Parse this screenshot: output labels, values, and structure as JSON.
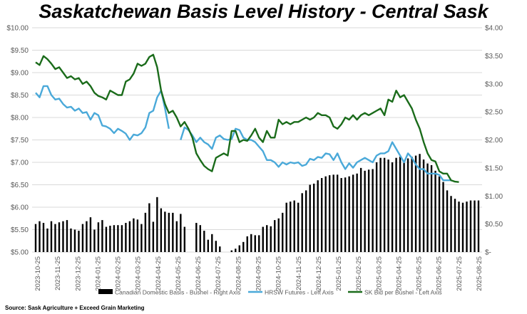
{
  "chart_data": {
    "type": "bar+line",
    "title": "Saskatchewan Basis Level History - Central Sask",
    "left_axis": {
      "min": 5.0,
      "max": 10.0,
      "ticks": [
        "$5.00",
        "$5.50",
        "$6.00",
        "$6.50",
        "$7.00",
        "$7.50",
        "$8.00",
        "$8.50",
        "$9.00",
        "$9.50",
        "$10.00"
      ]
    },
    "right_axis": {
      "min": 0.0,
      "max": 4.0,
      "ticks": [
        "$-",
        "$0.50",
        "$1.00",
        "$1.50",
        "$2.00",
        "$2.50",
        "$3.00",
        "$3.50",
        "$4.00"
      ]
    },
    "x_tick_labels": [
      "2023-10-25",
      "2023-11-25",
      "2023-12-25",
      "2024-01-25",
      "2024-02-25",
      "2024-03-25",
      "2024-04-25",
      "2024-05-25",
      "2024-06-25",
      "2024-07-25",
      "2024-08-25",
      "2024-09-25",
      "2024-10-25",
      "2024-11-25",
      "2024-12-25",
      "2025-01-25",
      "2025-02-25",
      "2025-03-25",
      "2025-04-25",
      "2025-05-25",
      "2025-06-25",
      "2025-07-25",
      "2025-08-25"
    ],
    "grid": true,
    "legend_position": "bottom",
    "series": [
      {
        "name": "Canadian Domestic Basis - Bushel - Right Axis",
        "type": "bar",
        "axis": "right",
        "color": "#000000",
        "values": [
          0.5,
          0.55,
          0.52,
          0.42,
          0.55,
          0.5,
          0.53,
          0.55,
          0.57,
          0.42,
          0.4,
          0.38,
          0.5,
          0.55,
          0.62,
          0.4,
          0.53,
          0.57,
          0.45,
          0.47,
          0.48,
          0.48,
          0.48,
          0.52,
          0.55,
          0.6,
          0.58,
          0.5,
          0.7,
          0.87,
          0.54,
          0.98,
          0.78,
          0.72,
          0.7,
          0.7,
          0.55,
          0.68,
          0.45,
          null,
          null,
          0.52,
          0.48,
          0.38,
          0.22,
          0.32,
          0.2,
          0.1,
          null,
          null,
          0.03,
          0.06,
          0.12,
          0.18,
          0.28,
          0.32,
          0.3,
          0.3,
          0.45,
          0.48,
          0.46,
          0.57,
          0.6,
          0.7,
          0.88,
          0.9,
          0.92,
          0.88,
          1.05,
          1.1,
          1.2,
          1.22,
          1.28,
          1.32,
          1.35,
          1.37,
          1.38,
          1.38,
          1.32,
          1.33,
          1.35,
          1.38,
          1.4,
          1.5,
          1.45,
          1.47,
          1.48,
          1.6,
          1.68,
          1.68,
          1.65,
          1.6,
          1.68,
          1.7,
          1.6,
          1.67,
          1.7,
          1.72,
          1.75,
          1.65,
          1.58,
          1.55,
          1.45,
          1.35,
          1.25,
          1.1,
          1.0,
          0.95,
          0.9,
          0.88,
          0.9,
          0.92,
          0.92,
          0.92
        ]
      },
      {
        "name": "HRSW Futures - Left Axis",
        "type": "line",
        "axis": "left",
        "color": "#4aa9d9",
        "values": [
          8.55,
          8.45,
          8.7,
          8.7,
          8.5,
          8.4,
          8.42,
          8.3,
          8.22,
          8.24,
          8.15,
          8.2,
          8.1,
          8.12,
          7.95,
          8.1,
          8.05,
          7.82,
          7.8,
          7.75,
          7.65,
          7.75,
          7.7,
          7.64,
          7.5,
          7.62,
          7.6,
          7.65,
          7.78,
          8.1,
          8.15,
          8.45,
          8.6,
          8.2,
          7.75,
          null,
          null,
          7.5,
          7.78,
          7.72,
          7.6,
          7.45,
          7.55,
          7.45,
          7.4,
          7.3,
          7.55,
          7.6,
          7.52,
          7.5,
          7.52,
          7.75,
          7.72,
          7.55,
          7.5,
          7.5,
          7.45,
          7.35,
          7.25,
          7.05,
          7.05,
          7.0,
          6.9,
          7.0,
          6.95,
          7.0,
          6.98,
          7.0,
          6.92,
          6.95,
          7.08,
          7.05,
          7.12,
          7.1,
          7.2,
          7.18,
          7.05,
          7.2,
          7.0,
          6.85,
          6.98,
          6.88,
          7.0,
          7.05,
          7.1,
          7.05,
          7.0,
          7.15,
          7.2,
          7.2,
          7.25,
          7.45,
          7.3,
          7.15,
          7.0,
          7.2,
          7.1,
          6.95,
          6.85,
          6.85,
          6.75,
          6.75,
          6.75,
          6.72,
          6.6,
          6.6,
          6.6
        ]
      },
      {
        "name": "SK Bid per Bushel - Left Axis",
        "type": "line",
        "axis": "left",
        "color": "#1a6b1a",
        "values": [
          9.23,
          9.17,
          9.37,
          9.3,
          9.2,
          9.08,
          9.12,
          9.0,
          8.88,
          8.92,
          8.85,
          8.88,
          8.75,
          8.8,
          8.7,
          8.55,
          8.48,
          8.45,
          8.4,
          8.6,
          8.55,
          8.5,
          8.5,
          8.8,
          8.85,
          8.98,
          9.2,
          9.15,
          9.2,
          9.35,
          9.4,
          9.12,
          8.6,
          8.3,
          8.1,
          8.15,
          8.0,
          7.8,
          7.9,
          7.75,
          7.55,
          7.2,
          7.05,
          6.92,
          6.85,
          6.8,
          7.1,
          7.15,
          7.2,
          7.15,
          7.7,
          7.7,
          7.45,
          7.5,
          7.48,
          7.6,
          7.75,
          7.55,
          7.45,
          7.7,
          7.55,
          7.55,
          7.95,
          7.85,
          7.9,
          7.85,
          7.9,
          7.9,
          7.95,
          8.0,
          7.95,
          8.0,
          8.1,
          8.05,
          8.05,
          8.0,
          7.8,
          7.75,
          7.85,
          8.0,
          7.95,
          8.05,
          7.95,
          8.05,
          8.1,
          8.05,
          8.1,
          8.15,
          8.2,
          8.05,
          8.4,
          8.35,
          8.6,
          8.45,
          8.5,
          8.35,
          8.2,
          7.95,
          7.75,
          7.45,
          7.2,
          7.05,
          7.02,
          6.8,
          6.75,
          6.75,
          6.6,
          6.57,
          6.56
        ]
      }
    ]
  },
  "source_note": "Source: Sask Agriculture + Exceed Grain Marketing"
}
